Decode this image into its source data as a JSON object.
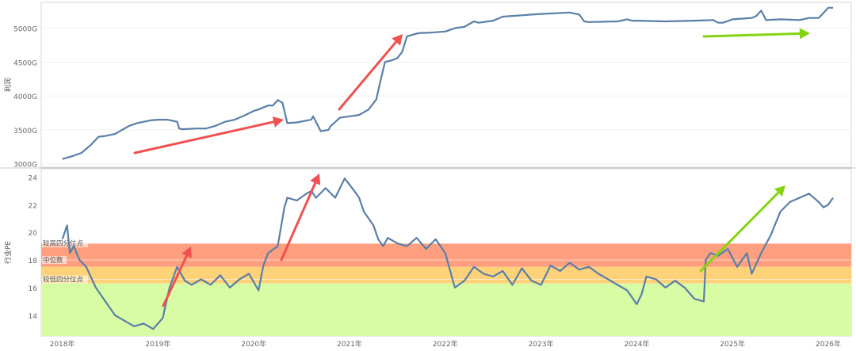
{
  "chart_data": [
    {
      "type": "line",
      "ylabel": "利润",
      "yticks": [
        "3000G",
        "3500G",
        "4000G",
        "4500G",
        "5000G"
      ],
      "ylim": [
        2950,
        5380
      ],
      "colors": {
        "line": "#5a7fa7",
        "arrow_red": "#f05050",
        "arrow_green": "#86d312"
      },
      "series": [
        {
          "x": [
            2018.0,
            2018.1,
            2018.2,
            2018.3,
            2018.38,
            2018.45,
            2018.55,
            2018.7,
            2018.78,
            2018.85,
            2018.92,
            2019.0,
            2019.1,
            2019.2,
            2019.22,
            2019.25,
            2019.4,
            2019.5,
            2019.6,
            2019.7,
            2019.8,
            2019.9,
            2020.0,
            2020.05,
            2020.15,
            2020.2,
            2020.22,
            2020.25,
            2020.3,
            2020.35,
            2020.45,
            2020.6,
            2020.62,
            2020.7,
            2020.78,
            2020.8,
            2020.9,
            2021.0,
            2021.1,
            2021.2,
            2021.28,
            2021.32,
            2021.37,
            2021.45,
            2021.5,
            2021.55,
            2021.6,
            2021.7,
            2021.75,
            2021.8,
            2021.9,
            2022.0,
            2022.1,
            2022.2,
            2022.3,
            2022.35,
            2022.4,
            2022.5,
            2022.6,
            2022.7,
            2022.8,
            2022.9,
            2023.0,
            2023.3,
            2023.4,
            2023.45,
            2023.5,
            2023.8,
            2023.9,
            2023.95,
            2024.0,
            2024.3,
            2024.6,
            2024.8,
            2024.85,
            2024.9,
            2025.0,
            2025.1,
            2025.2,
            2025.25,
            2025.3,
            2025.35,
            2025.5,
            2025.7,
            2025.8,
            2025.9,
            2026.0,
            2026.05
          ],
          "values": [
            3070,
            3110,
            3160,
            3280,
            3400,
            3410,
            3440,
            3560,
            3600,
            3620,
            3640,
            3650,
            3650,
            3620,
            3520,
            3510,
            3520,
            3520,
            3560,
            3620,
            3650,
            3710,
            3780,
            3800,
            3860,
            3860,
            3890,
            3940,
            3900,
            3600,
            3610,
            3650,
            3700,
            3480,
            3500,
            3550,
            3680,
            3700,
            3720,
            3800,
            3950,
            4200,
            4500,
            4530,
            4560,
            4650,
            4880,
            4920,
            4930,
            4930,
            4940,
            4950,
            5000,
            5020,
            5100,
            5080,
            5090,
            5110,
            5170,
            5180,
            5190,
            5200,
            5210,
            5230,
            5200,
            5100,
            5090,
            5100,
            5130,
            5110,
            5110,
            5100,
            5110,
            5120,
            5080,
            5080,
            5130,
            5140,
            5150,
            5180,
            5260,
            5120,
            5130,
            5120,
            5150,
            5150,
            5300,
            5300
          ]
        }
      ]
    },
    {
      "type": "line",
      "ylabel": "行业PE",
      "yticks": [
        "14",
        "16",
        "18",
        "20",
        "22",
        "24"
      ],
      "ylim": [
        12.5,
        24.6
      ],
      "xlim": [
        2017.78,
        2026.24
      ],
      "xticks": [
        "2018年",
        "2019年",
        "2020年",
        "2021年",
        "2022年",
        "2023年",
        "2024年",
        "2025年",
        "2026年"
      ],
      "bands": [
        {
          "from": 17.5,
          "to": 19.2,
          "color": "#ff9f7f"
        },
        {
          "from": 16.3,
          "to": 17.5,
          "color": "#ffd27a"
        },
        {
          "from": 12.5,
          "to": 16.3,
          "color": "#d8fca4"
        }
      ],
      "reference_lines": [
        {
          "label": "较高四分位点",
          "value": 19.2
        },
        {
          "label": "中位数",
          "value": 18.0
        },
        {
          "label": "较低四分位点",
          "value": 16.6
        }
      ],
      "colors": {
        "line": "#5a7fa7",
        "arrow_red": "#f05050",
        "arrow_green": "#86d312"
      },
      "series": [
        {
          "x": [
            2018.0,
            2018.05,
            2018.08,
            2018.12,
            2018.18,
            2018.25,
            2018.35,
            2018.45,
            2018.55,
            2018.65,
            2018.75,
            2018.85,
            2018.95,
            2019.05,
            2019.12,
            2019.2,
            2019.28,
            2019.35,
            2019.45,
            2019.55,
            2019.65,
            2019.75,
            2019.85,
            2019.95,
            2020.05,
            2020.1,
            2020.15,
            2020.25,
            2020.32,
            2020.35,
            2020.45,
            2020.55,
            2020.6,
            2020.65,
            2020.75,
            2020.85,
            2020.95,
            2021.05,
            2021.1,
            2021.15,
            2021.25,
            2021.3,
            2021.35,
            2021.4,
            2021.5,
            2021.6,
            2021.7,
            2021.8,
            2021.9,
            2022.0,
            2022.1,
            2022.2,
            2022.3,
            2022.4,
            2022.5,
            2022.6,
            2022.7,
            2022.8,
            2022.9,
            2023.0,
            2023.1,
            2023.2,
            2023.3,
            2023.4,
            2023.5,
            2023.6,
            2023.7,
            2023.8,
            2023.9,
            2024.0,
            2024.05,
            2024.1,
            2024.2,
            2024.3,
            2024.4,
            2024.5,
            2024.6,
            2024.7,
            2024.72,
            2024.77,
            2024.85,
            2024.95,
            2025.05,
            2025.15,
            2025.2,
            2025.3,
            2025.4,
            2025.5,
            2025.6,
            2025.7,
            2025.8,
            2025.9,
            2025.95,
            2026.0,
            2026.05
          ],
          "values": [
            19.5,
            20.5,
            18.5,
            19.0,
            18.0,
            17.5,
            16.0,
            15.0,
            14.0,
            13.6,
            13.2,
            13.4,
            13.0,
            13.8,
            16.0,
            17.5,
            16.5,
            16.2,
            16.6,
            16.2,
            16.9,
            16.0,
            16.6,
            17.0,
            15.8,
            17.6,
            18.5,
            19.0,
            21.8,
            22.5,
            22.3,
            22.8,
            23.0,
            22.5,
            23.2,
            22.5,
            23.9,
            23.0,
            22.5,
            21.5,
            20.5,
            19.5,
            19.0,
            19.6,
            19.2,
            19.0,
            19.6,
            18.8,
            19.5,
            18.5,
            16.0,
            16.5,
            17.5,
            17.0,
            16.8,
            17.2,
            16.2,
            17.4,
            16.5,
            16.2,
            17.6,
            17.2,
            17.8,
            17.3,
            17.5,
            17.0,
            16.6,
            16.2,
            15.8,
            14.8,
            15.5,
            16.8,
            16.6,
            16.0,
            16.5,
            16.0,
            15.2,
            15.0,
            18.0,
            18.5,
            18.3,
            18.8,
            17.5,
            18.5,
            17.0,
            18.5,
            19.8,
            21.5,
            22.2,
            22.5,
            22.8,
            22.2,
            21.8,
            22.0,
            22.5
          ]
        }
      ]
    }
  ]
}
